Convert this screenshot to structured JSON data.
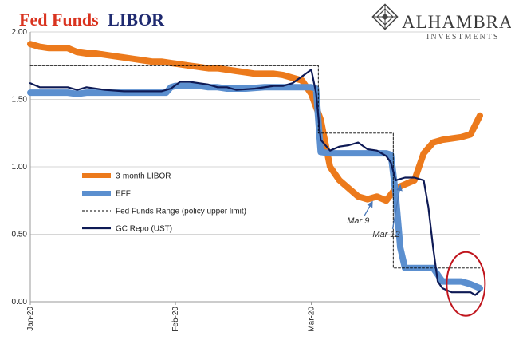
{
  "header": {
    "title_part1": "Fed Funds",
    "title_part2": "LIBOR",
    "title_part1_color": "#d9331f",
    "title_part2_color": "#1f2a70"
  },
  "brand": {
    "name": "ALHAMBRA",
    "subtitle": "INVESTMENTS",
    "logo": "alhambra-diamond-logo"
  },
  "chart_data": {
    "type": "line",
    "ylim": [
      0,
      2.0
    ],
    "y_ticks": [
      "2.00",
      "1.50",
      "1.00",
      "0.50",
      "0.00"
    ],
    "y_tick_values": [
      2.0,
      1.5,
      1.0,
      0.5,
      0.0
    ],
    "x_range_days": [
      0,
      96
    ],
    "x_ticks": [
      {
        "label": "Jan-20",
        "day": 0
      },
      {
        "label": "Feb-20",
        "day": 31
      },
      {
        "label": "Mar-20",
        "day": 60
      }
    ],
    "grid": true,
    "legend": "center-left",
    "series": [
      {
        "name": "3-month LIBOR",
        "color": "#ec7a1c",
        "style": "thick",
        "x": [
          0,
          2,
          4,
          6,
          8,
          10,
          12,
          14,
          16,
          18,
          20,
          22,
          24,
          26,
          28,
          30,
          32,
          34,
          36,
          38,
          40,
          42,
          44,
          46,
          48,
          50,
          52,
          54,
          56,
          58,
          60,
          62,
          64,
          66,
          68,
          70,
          72,
          74,
          76,
          78,
          80,
          82,
          84,
          86,
          88,
          90,
          92,
          94,
          96
        ],
        "y": [
          1.91,
          1.89,
          1.88,
          1.88,
          1.88,
          1.85,
          1.84,
          1.84,
          1.83,
          1.82,
          1.81,
          1.8,
          1.79,
          1.78,
          1.78,
          1.77,
          1.76,
          1.75,
          1.74,
          1.73,
          1.73,
          1.72,
          1.71,
          1.7,
          1.69,
          1.69,
          1.69,
          1.68,
          1.66,
          1.64,
          1.54,
          1.35,
          1.0,
          0.9,
          0.84,
          0.78,
          0.76,
          0.78,
          0.75,
          0.84,
          0.87,
          0.9,
          1.1,
          1.18,
          1.2,
          1.21,
          1.22,
          1.24,
          1.38
        ]
      },
      {
        "name": "EFF",
        "color": "#5b8fcf",
        "style": "thick",
        "x": [
          0,
          8,
          10,
          12,
          16,
          24,
          29,
          30,
          31,
          32,
          34,
          36,
          38,
          40,
          42,
          46,
          50,
          54,
          58,
          60,
          61,
          62,
          64,
          66,
          68,
          70,
          72,
          74,
          76,
          77,
          78,
          79,
          80,
          81,
          82,
          84,
          86,
          88,
          90,
          92,
          94,
          96
        ],
        "y": [
          1.55,
          1.55,
          1.54,
          1.55,
          1.55,
          1.55,
          1.55,
          1.59,
          1.6,
          1.6,
          1.6,
          1.6,
          1.59,
          1.59,
          1.58,
          1.58,
          1.59,
          1.59,
          1.59,
          1.59,
          1.58,
          1.11,
          1.1,
          1.1,
          1.1,
          1.1,
          1.1,
          1.1,
          1.1,
          1.09,
          0.8,
          0.4,
          0.25,
          0.25,
          0.25,
          0.25,
          0.25,
          0.15,
          0.15,
          0.15,
          0.13,
          0.1
        ]
      },
      {
        "name": "Fed Funds Range (policy upper limit)",
        "color": "#000000",
        "style": "dashed",
        "x": [
          0,
          61.5,
          61.5,
          77.5,
          77.5,
          96
        ],
        "y": [
          1.75,
          1.75,
          1.25,
          1.25,
          0.25,
          0.25
        ]
      },
      {
        "name": "GC Repo (UST)",
        "color": "#0e1a55",
        "style": "thin",
        "x": [
          0,
          2,
          4,
          8,
          10,
          12,
          16,
          20,
          24,
          28,
          30,
          32,
          34,
          36,
          38,
          40,
          42,
          44,
          48,
          52,
          54,
          56,
          58,
          60,
          61,
          62,
          64,
          66,
          68,
          70,
          72,
          74,
          76,
          77,
          78,
          80,
          82,
          84,
          85,
          86,
          87,
          88,
          90,
          92,
          94,
          95,
          96
        ],
        "y": [
          1.62,
          1.59,
          1.59,
          1.59,
          1.57,
          1.59,
          1.57,
          1.56,
          1.56,
          1.56,
          1.58,
          1.63,
          1.63,
          1.62,
          1.61,
          1.59,
          1.59,
          1.57,
          1.58,
          1.6,
          1.6,
          1.62,
          1.67,
          1.72,
          1.55,
          1.2,
          1.12,
          1.15,
          1.16,
          1.18,
          1.13,
          1.12,
          1.08,
          1.03,
          0.9,
          0.92,
          0.92,
          0.9,
          0.7,
          0.4,
          0.15,
          0.1,
          0.07,
          0.07,
          0.07,
          0.05,
          0.08
        ]
      }
    ],
    "annotations": [
      {
        "text": "Mar 9",
        "x": 70,
        "y": 0.58,
        "arrow_to": [
          73,
          0.74
        ]
      },
      {
        "text": "Mar 12",
        "x": 76,
        "y": 0.48,
        "arrow_to": [
          79,
          0.86
        ]
      }
    ],
    "highlight": {
      "shape": "ellipse",
      "color": "#c0151d",
      "cx": 93,
      "cy": 0.12
    }
  }
}
